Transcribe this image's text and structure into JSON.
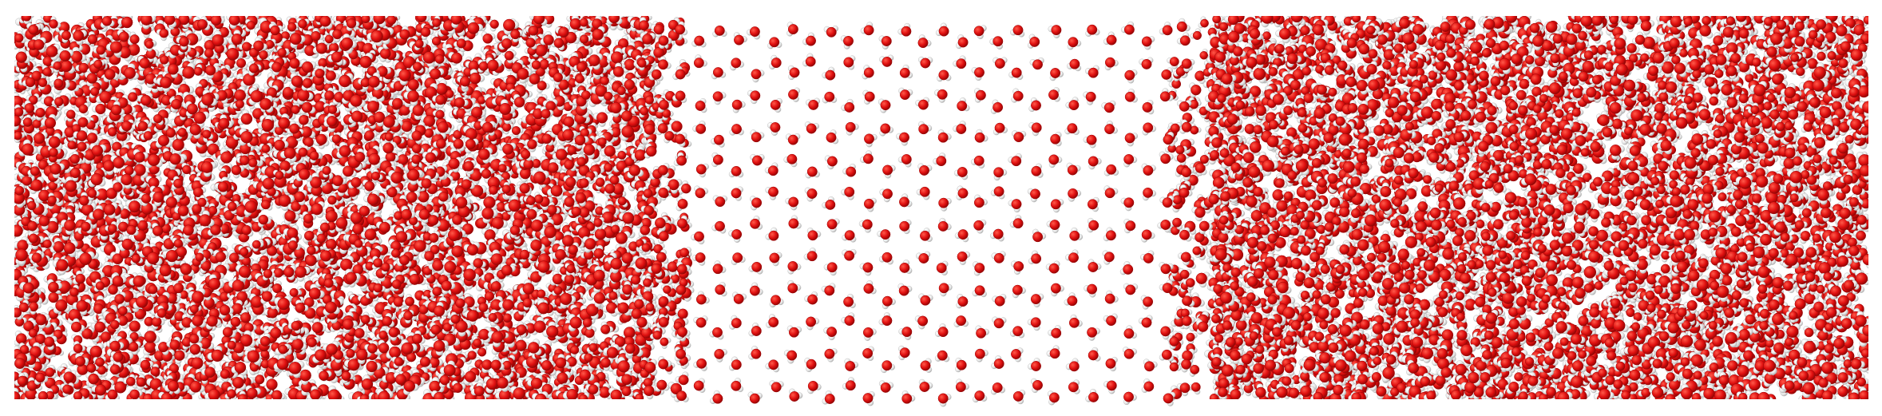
{
  "scene": {
    "subject": "molecular-dynamics-snapshot",
    "regions": [
      {
        "name": "left-liquid-slab",
        "phase": "liquid"
      },
      {
        "name": "central-ice-slab",
        "phase": "hexagonal-ice"
      },
      {
        "name": "right-liquid-slab",
        "phase": "liquid"
      }
    ],
    "colors": {
      "background": "#ffffff",
      "oxygen": "#e01010",
      "oxygen_dark": "#9a0606",
      "hydrogen": "#f0f0f0",
      "hydrogen_shade": "#b8b8b8"
    }
  }
}
